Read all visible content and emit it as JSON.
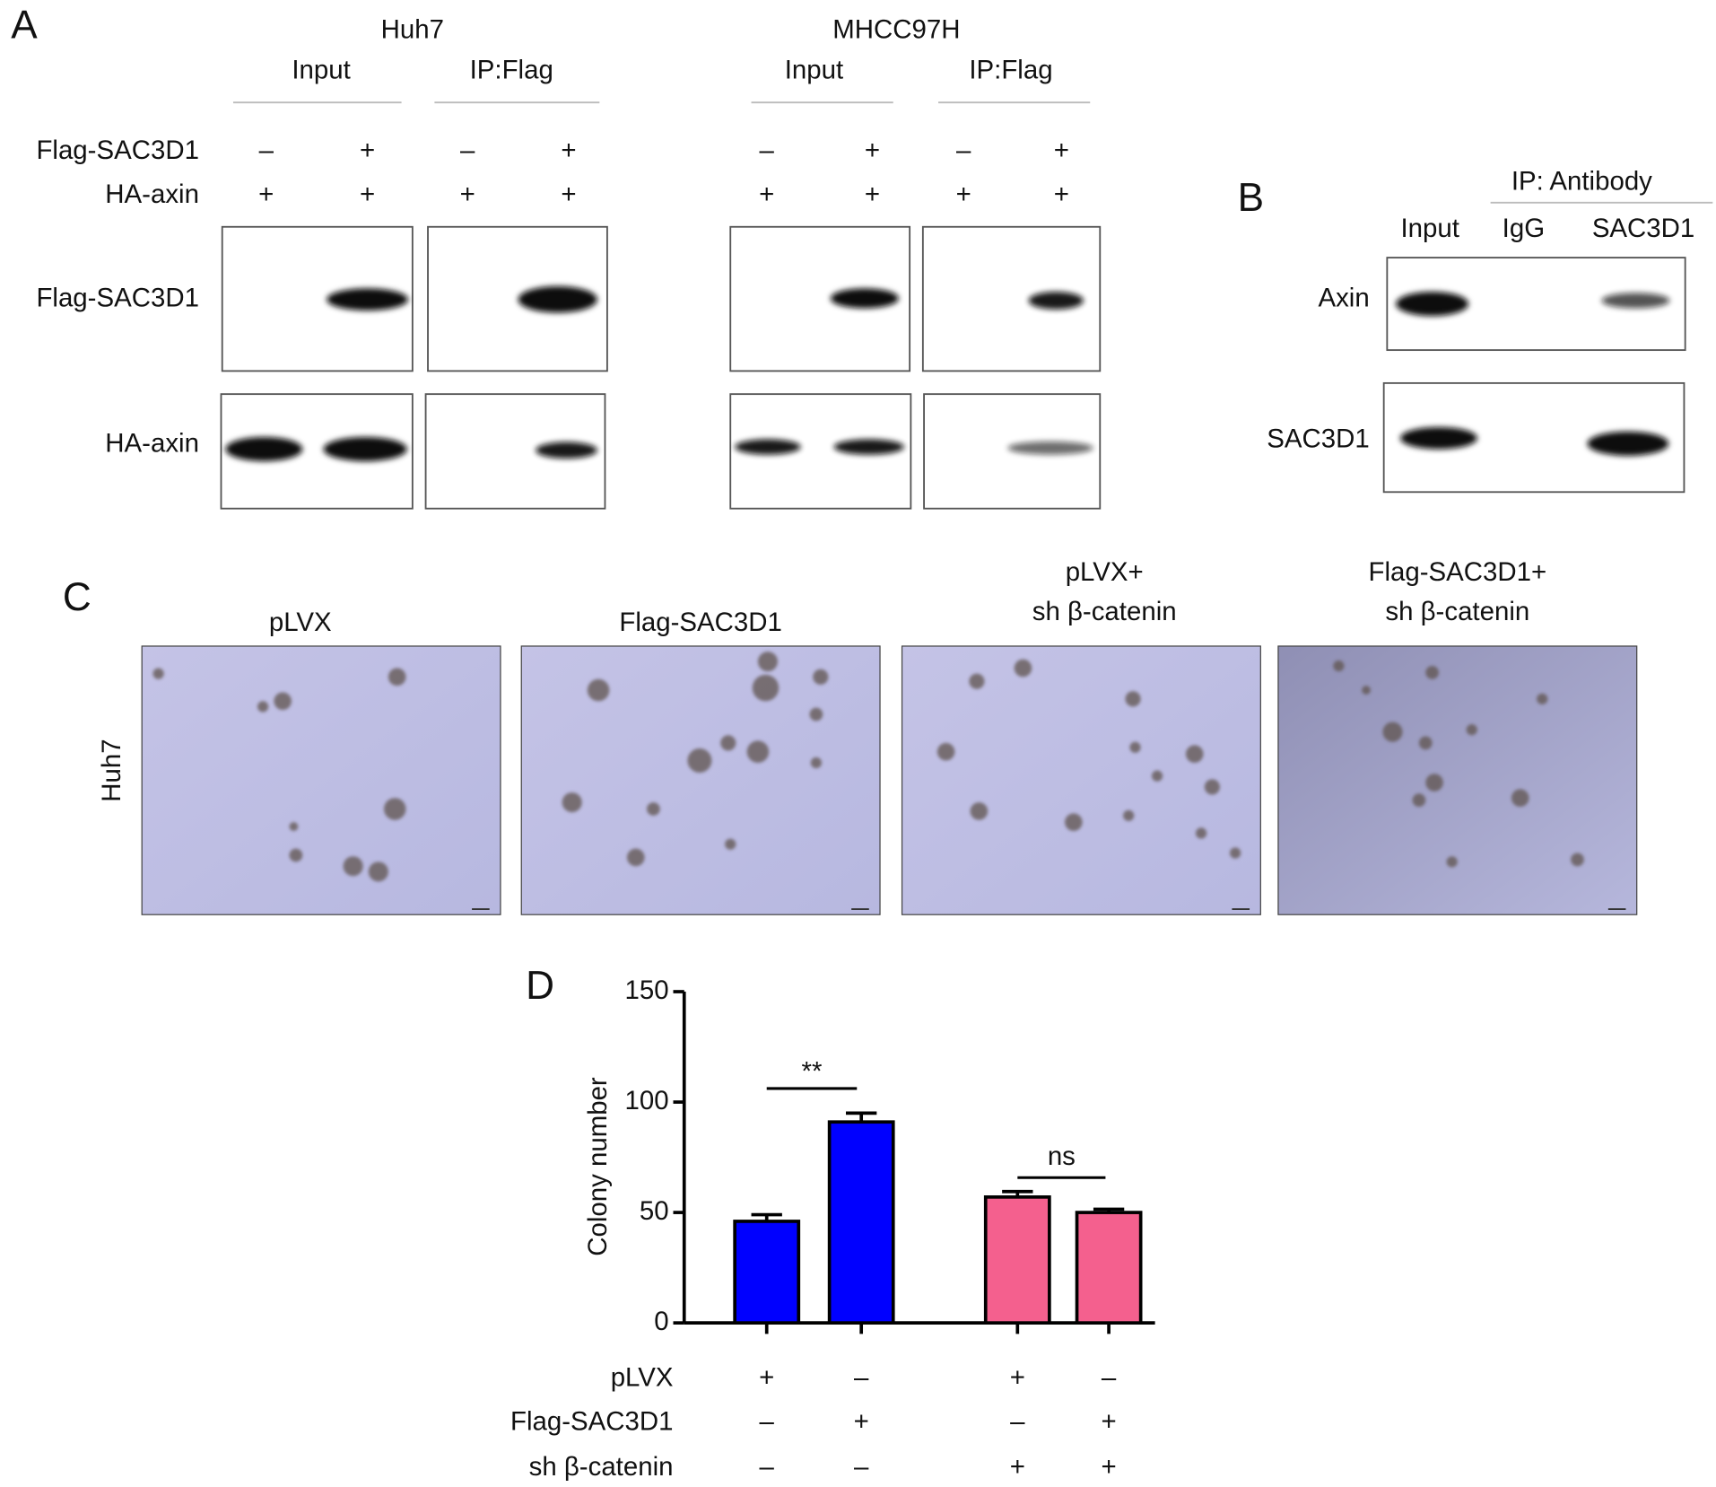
{
  "panel_a": {
    "label": "A",
    "row_labels": [
      "Flag-SAC3D1",
      "HA-axin"
    ],
    "blot_labels": [
      "Flag-SAC3D1",
      "HA-axin"
    ],
    "cell_lines": [
      {
        "name": "Huh7",
        "groups": [
          "Input",
          "IP:Flag"
        ],
        "signs": [
          [
            "–",
            "+",
            "–",
            "+"
          ],
          [
            "+",
            "+",
            "+",
            "+"
          ]
        ]
      },
      {
        "name": "MHCC97H",
        "groups": [
          "Input",
          "IP:Flag"
        ],
        "signs": [
          [
            "–",
            "+",
            "–",
            "+"
          ],
          [
            "+",
            "+",
            "+",
            "+"
          ]
        ]
      }
    ]
  },
  "panel_b": {
    "label": "B",
    "group": "IP: Antibody",
    "columns": [
      "Input",
      "IgG",
      "SAC3D1"
    ],
    "rows": [
      "Axin",
      "SAC3D1"
    ]
  },
  "panel_c": {
    "label": "C",
    "row_label": "Huh7",
    "titles": [
      [
        "pLVX"
      ],
      [
        "Flag-SAC3D1"
      ],
      [
        "pLVX+",
        "sh β-catenin"
      ],
      [
        "Flag-SAC3D1+",
        "sh β-catenin"
      ]
    ]
  },
  "chart_data": {
    "type": "bar",
    "panel_label": "D",
    "ylabel": "Colony number",
    "values": [
      46,
      91,
      57,
      50
    ],
    "errors": [
      3,
      4,
      2.5,
      1.5
    ],
    "colors": [
      "#0000ff",
      "#0000ff",
      "#f4608e",
      "#f4608e"
    ],
    "ylim": [
      0,
      150
    ],
    "yticks": [
      0,
      50,
      100,
      150
    ],
    "annotations": [
      "**",
      "ns"
    ],
    "conditions": [
      {
        "name": "pLVX",
        "signs": [
          "+",
          "–",
          "+",
          "–"
        ]
      },
      {
        "name": "Flag-SAC3D1",
        "signs": [
          "–",
          "+",
          "–",
          "+"
        ]
      },
      {
        "name": "sh β-catenin",
        "signs": [
          "–",
          "–",
          "+",
          "+"
        ]
      }
    ]
  }
}
